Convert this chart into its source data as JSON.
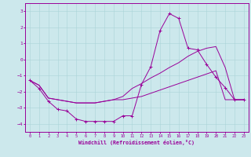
{
  "bg_color": "#cce8ec",
  "line_color": "#990099",
  "grid_color": "#aad4d8",
  "xlabel": "Windchill (Refroidissement éolien,°C)",
  "xlim": [
    -0.5,
    23.5
  ],
  "ylim": [
    -4.5,
    3.5
  ],
  "xticks": [
    0,
    1,
    2,
    3,
    4,
    5,
    6,
    7,
    8,
    9,
    10,
    11,
    12,
    13,
    14,
    15,
    16,
    17,
    18,
    19,
    20,
    21,
    22,
    23
  ],
  "yticks": [
    -4,
    -3,
    -2,
    -1,
    0,
    1,
    2,
    3
  ],
  "line1_x": [
    0,
    1,
    2,
    3,
    4,
    5,
    6,
    7,
    8,
    9,
    10,
    11,
    12,
    13,
    14,
    15,
    16,
    17,
    18,
    19,
    20,
    21,
    22,
    23
  ],
  "line1_y": [
    -1.3,
    -1.8,
    -2.6,
    -3.1,
    -3.2,
    -3.7,
    -3.85,
    -3.85,
    -3.85,
    -3.85,
    -3.5,
    -3.5,
    -1.55,
    -0.45,
    1.8,
    2.85,
    2.55,
    0.7,
    0.6,
    -0.3,
    -1.1,
    -1.75,
    -2.5,
    -2.5
  ],
  "line2_x": [
    0,
    1,
    2,
    3,
    4,
    5,
    6,
    7,
    8,
    9,
    10,
    11,
    12,
    13,
    14,
    15,
    16,
    17,
    18,
    19,
    20,
    21,
    22,
    23
  ],
  "line2_y": [
    -1.3,
    -1.6,
    -2.4,
    -2.5,
    -2.6,
    -2.7,
    -2.7,
    -2.7,
    -2.6,
    -2.5,
    -2.5,
    -2.4,
    -2.3,
    -2.1,
    -1.9,
    -1.7,
    -1.5,
    -1.3,
    -1.1,
    -0.9,
    -0.7,
    -2.5,
    -2.5,
    -2.5
  ],
  "line3_x": [
    0,
    1,
    2,
    3,
    4,
    5,
    6,
    7,
    8,
    9,
    10,
    11,
    12,
    13,
    14,
    15,
    16,
    17,
    18,
    19,
    20,
    21,
    22,
    23
  ],
  "line3_y": [
    -1.3,
    -1.6,
    -2.4,
    -2.5,
    -2.6,
    -2.7,
    -2.7,
    -2.7,
    -2.6,
    -2.5,
    -2.3,
    -1.8,
    -1.5,
    -1.15,
    -0.85,
    -0.5,
    -0.2,
    0.2,
    0.5,
    0.7,
    0.8,
    -0.5,
    -2.5,
    -2.5
  ]
}
